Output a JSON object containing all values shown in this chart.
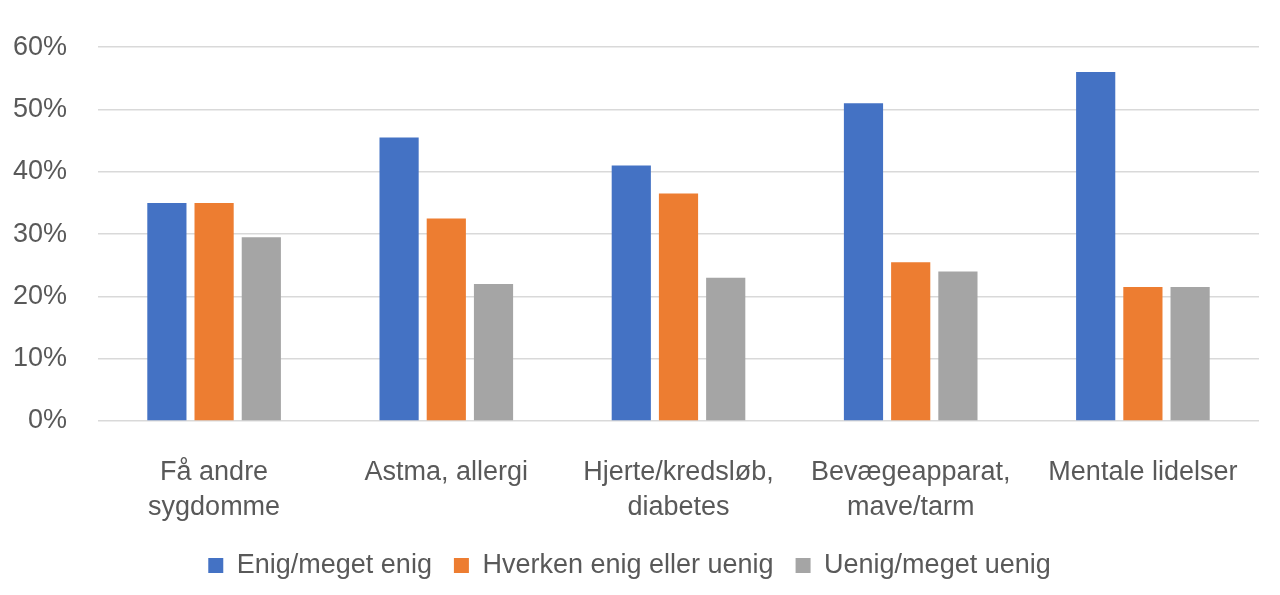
{
  "chart_data": {
    "type": "bar",
    "categories": [
      "Få andre sygdomme",
      "Astma, allergi",
      "Hjerte/kredsløb, diabetes",
      "Bevægeapparat, mave/tarm",
      "Mentale lidelser"
    ],
    "series": [
      {
        "name": "Enig/meget enig",
        "color": "#4472c4",
        "values": [
          35,
          45.5,
          41,
          51,
          56
        ]
      },
      {
        "name": "Hverken enig eller uenig",
        "color": "#ed7d31",
        "values": [
          35,
          32.5,
          36.5,
          25.5,
          21.5
        ]
      },
      {
        "name": "Uenig/meget uenig",
        "color": "#a5a5a5",
        "values": [
          29.5,
          22,
          23,
          24,
          21.5
        ]
      }
    ],
    "ylim": [
      0,
      60
    ],
    "yticks": [
      {
        "value": 0,
        "label": "0%"
      },
      {
        "value": 10,
        "label": "10%"
      },
      {
        "value": 20,
        "label": "20%"
      },
      {
        "value": 30,
        "label": "30%"
      },
      {
        "value": 40,
        "label": "40%"
      },
      {
        "value": 50,
        "label": "50%"
      },
      {
        "value": 60,
        "label": "60%"
      }
    ],
    "grid": "y",
    "legend": "bottom"
  }
}
